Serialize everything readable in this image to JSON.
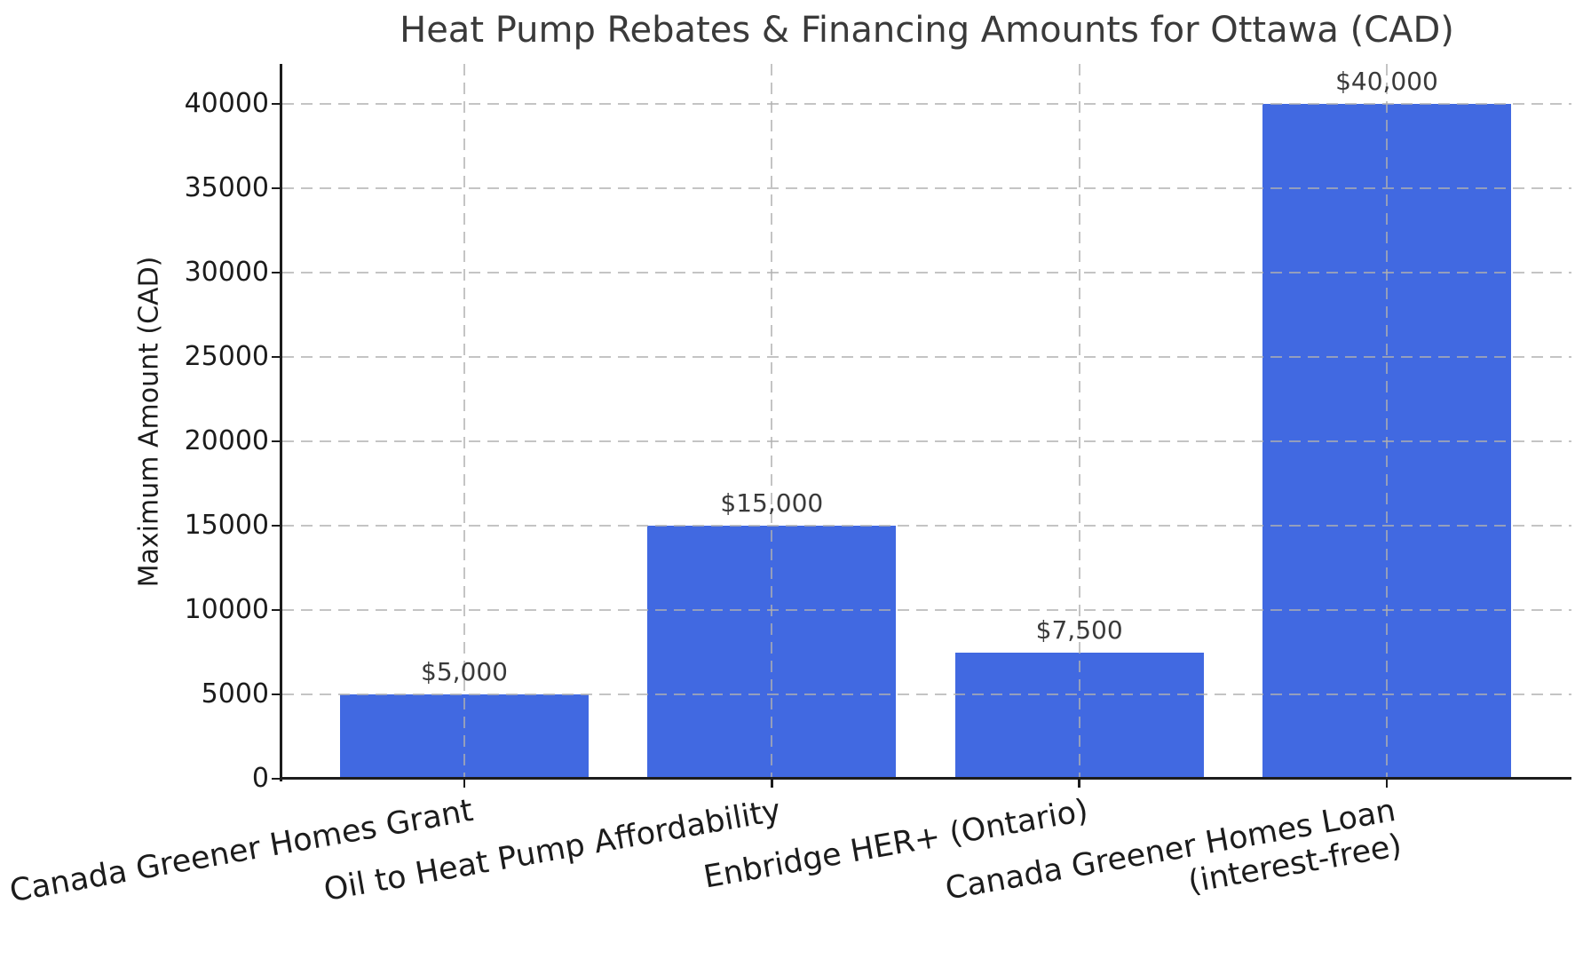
{
  "chart_data": {
    "type": "bar",
    "title": "Heat Pump Rebates & Financing Amounts for Ottawa (CAD)",
    "xlabel": "",
    "ylabel": "Maximum Amount (CAD)",
    "categories": [
      "Canada Greener Homes Grant",
      "Oil to Heat Pump Affordability",
      "Enbridge HER+ (Ontario)",
      "Canada Greener Homes Loan\n(interest-free)"
    ],
    "values": [
      5000,
      15000,
      7500,
      40000
    ],
    "value_labels": [
      "$5,000",
      "$15,000",
      "$7,500",
      "$40,000"
    ],
    "yticks": [
      0,
      5000,
      10000,
      15000,
      20000,
      25000,
      30000,
      35000,
      40000
    ],
    "ytick_labels": [
      "0",
      "5000",
      "10000",
      "15000",
      "20000",
      "25000",
      "30000",
      "35000",
      "40000"
    ],
    "ylim": [
      0,
      42400
    ],
    "grid": "dashed-both-axes-above-bars",
    "legend": "none"
  },
  "style": {
    "bar_color": "#4169E1",
    "grid_color": "#b0b0b0",
    "axis_color": "#1c1c1c",
    "tick_text_color": "#1c1c1c",
    "title_color": "#3a3a3a",
    "value_label_color": "#3a3a3a",
    "background_color": "#ffffff"
  }
}
